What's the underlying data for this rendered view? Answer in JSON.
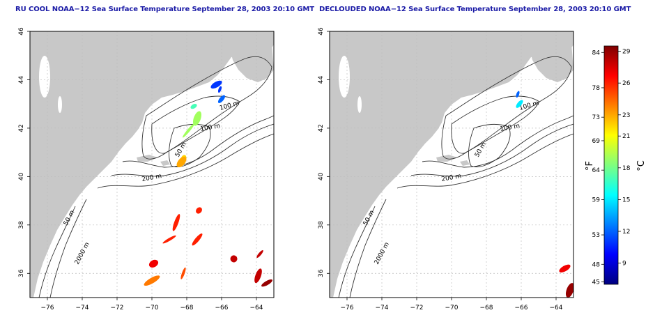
{
  "panels": [
    {
      "title": "RU COOL NOAA−12 Sea Surface Temperature September 28, 2003 20:10 GMT",
      "contour_labels": [
        "100 m",
        "100 m",
        "50 m",
        "200 m",
        "50 m",
        "2000 m"
      ],
      "swaths": [
        {
          "lon": -66.1,
          "lat": 43.6,
          "temp_c": 11
        },
        {
          "lon": -66.0,
          "lat": 43.2,
          "temp_c": 12
        },
        {
          "lon": -66.3,
          "lat": 43.8,
          "temp_c": 11
        },
        {
          "lon": -67.4,
          "lat": 42.4,
          "temp_c": 19
        },
        {
          "lon": -67.9,
          "lat": 41.9,
          "temp_c": 19
        },
        {
          "lon": -67.6,
          "lat": 42.9,
          "temp_c": 17
        },
        {
          "lon": -68.2,
          "lat": 40.7,
          "temp_c": 22
        },
        {
          "lon": -68.3,
          "lat": 40.6,
          "temp_c": 23
        },
        {
          "lon": -69.0,
          "lat": 37.4,
          "temp_c": 26
        },
        {
          "lon": -68.6,
          "lat": 38.1,
          "temp_c": 26
        },
        {
          "lon": -67.3,
          "lat": 38.6,
          "temp_c": 26
        },
        {
          "lon": -69.9,
          "lat": 36.4,
          "temp_c": 27
        },
        {
          "lon": -68.2,
          "lat": 36.0,
          "temp_c": 25
        },
        {
          "lon": -67.4,
          "lat": 37.4,
          "temp_c": 26
        },
        {
          "lon": -70.0,
          "lat": 35.7,
          "temp_c": 24
        },
        {
          "lon": -65.3,
          "lat": 36.6,
          "temp_c": 28
        },
        {
          "lon": -63.8,
          "lat": 36.8,
          "temp_c": 28
        },
        {
          "lon": -63.4,
          "lat": 35.6,
          "temp_c": 29
        },
        {
          "lon": -63.9,
          "lat": 35.9,
          "temp_c": 28
        }
      ]
    },
    {
      "title": "DECLOUDED NOAA−12 Sea Surface Temperature September 28, 2003 20:10 GMT",
      "contour_labels": [
        "100 m",
        "100 m",
        "50 m",
        "200 m",
        "50 m",
        "2000 m"
      ],
      "swaths": [
        {
          "lon": -66.2,
          "lat": 43.4,
          "temp_c": 12
        },
        {
          "lon": -66.1,
          "lat": 43.0,
          "temp_c": 15
        },
        {
          "lon": -63.5,
          "lat": 36.2,
          "temp_c": 27
        },
        {
          "lon": -63.2,
          "lat": 35.3,
          "temp_c": 29
        }
      ]
    }
  ],
  "chart_data": [
    {
      "type": "heatmap",
      "title": "RU COOL NOAA−12 Sea Surface Temperature September 28, 2003 20:10 GMT",
      "xlim": [
        -77,
        -63
      ],
      "ylim": [
        35,
        46
      ],
      "xticks": [
        -76,
        -74,
        -72,
        -70,
        -68,
        -66,
        -64
      ],
      "yticks": [
        36,
        38,
        40,
        42,
        44,
        46
      ],
      "grid": true,
      "colorbar": "shared, right"
    },
    {
      "type": "heatmap",
      "title": "DECLOUDED NOAA−12 Sea Surface Temperature September 28, 2003 20:10 GMT",
      "xlim": [
        -77,
        -63
      ],
      "ylim": [
        35,
        46
      ],
      "xticks": [
        -76,
        -74,
        -72,
        -70,
        -68,
        -66,
        -64
      ],
      "yticks": [
        36,
        38,
        40,
        42,
        44,
        46
      ],
      "grid": true,
      "colorbar": "shared, right"
    }
  ],
  "colorbar": {
    "label_f": "°F",
    "label_c": "°C",
    "f_ticks": [
      "84",
      "78",
      "73",
      "69",
      "64",
      "59",
      "53",
      "48",
      "45"
    ],
    "c_ticks": [
      "29",
      "26",
      "23",
      "21",
      "18",
      "15",
      "12",
      "9"
    ],
    "min_c": 7,
    "max_c": 29.5,
    "colors": [
      "#00007f",
      "#0000ff",
      "#007fff",
      "#00ffff",
      "#7fff7f",
      "#ffff00",
      "#ff7f00",
      "#ff0000",
      "#7f0000"
    ]
  },
  "colors": {
    "land": "#c8c8c8",
    "frame": "#000000",
    "grid": "#bdbdbd",
    "title": "#1a1aa6"
  }
}
